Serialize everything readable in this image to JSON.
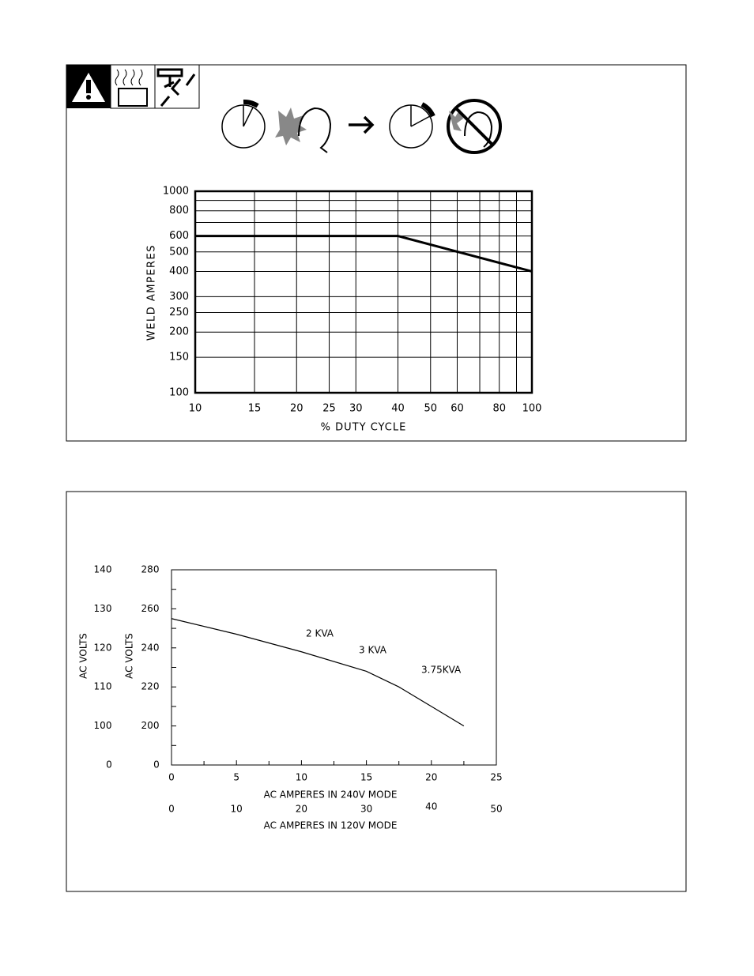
{
  "chart_data": [
    {
      "type": "line",
      "ylabel": "WELD AMPERES",
      "xlabel": "% DUTY CYCLE",
      "xscale": "log",
      "yscale": "log",
      "grid": true,
      "xlim": [
        10,
        100
      ],
      "ylim": [
        100,
        1000
      ],
      "xticks": [
        10,
        15,
        20,
        25,
        30,
        40,
        50,
        60,
        80,
        100
      ],
      "xgrid_extra": [
        70,
        90
      ],
      "yticks": [
        100,
        150,
        200,
        250,
        300,
        400,
        500,
        600,
        800,
        1000
      ],
      "ygrid_extra": [
        700,
        900
      ],
      "x": [
        10,
        40,
        100
      ],
      "series": [
        {
          "color": "#000000",
          "values": [
            600,
            600,
            400
          ]
        }
      ]
    },
    {
      "type": "line",
      "ylabel": "AC VOLTS",
      "y2label": "AC VOLTS",
      "xlabel": "AC AMPERES IN 240V MODE",
      "x2label": "AC AMPERES IN 120V MODE",
      "xlim": [
        0,
        25
      ],
      "xticks": [
        0,
        5,
        10,
        15,
        20,
        25
      ],
      "xminor": [
        2.5,
        7.5,
        12.5,
        17.5,
        22.5
      ],
      "x2lim": [
        0,
        50
      ],
      "x2ticks": [
        0,
        10,
        20,
        30,
        40,
        50
      ],
      "ylim": [
        180,
        280
      ],
      "yticks": [
        200,
        220,
        240,
        260,
        280
      ],
      "yminor": [
        190,
        210,
        230,
        250,
        270
      ],
      "ybreak_label": 0,
      "y2lim": [
        90,
        140
      ],
      "y2ticks": [
        100,
        110,
        120,
        130,
        140
      ],
      "y2break_label": 0,
      "x": [
        0,
        5,
        10,
        15,
        17.5,
        20,
        22.5
      ],
      "series": [
        {
          "color": "#000000",
          "values": [
            255,
            247,
            238,
            228,
            220,
            210,
            200
          ]
        }
      ],
      "annotations": [
        "2 KVA",
        "3 KVA",
        "3.75KVA"
      ]
    }
  ]
}
